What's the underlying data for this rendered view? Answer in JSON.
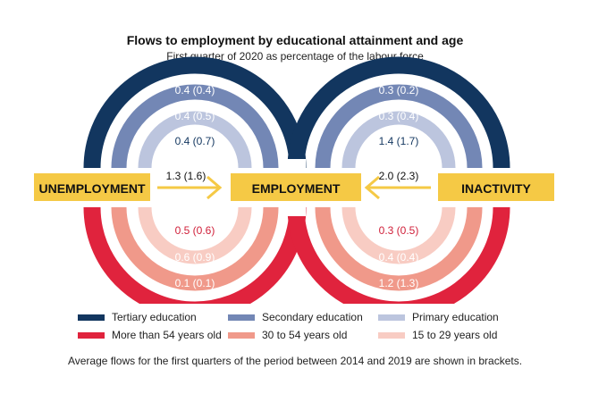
{
  "title": "Flows to employment by educational attainment and age",
  "subtitle": "First quarter of 2020 as percentage of the labour force",
  "colors": {
    "tertiary": "#12365f",
    "secondary": "#7387b5",
    "primary": "#bcc5de",
    "age_over54": "#e0233d",
    "age_30_54": "#f0998a",
    "age_15_29": "#f8ccc3",
    "box": "#f5c945",
    "arrow": "#f5c945"
  },
  "boxes": {
    "unemployment": "UNEMPLOYMENT",
    "employment": "EMPLOYMENT",
    "inactivity": "INACTIVITY"
  },
  "left": {
    "direct": "1.3 (1.6)",
    "tertiary": "0.4 (0.4)",
    "secondary": "0.4 (0.5)",
    "primary": "0.4 (0.7)",
    "age_15_29": "0.5 (0.6)",
    "age_30_54": "0.6 (0.9)",
    "age_over54": "0.1 (0.1)"
  },
  "right": {
    "direct": "2.0 (2.3)",
    "tertiary": "0.3 (0.2)",
    "secondary": "0.3 (0.4)",
    "primary": "1.4 (1.7)",
    "age_15_29": "0.3 (0.5)",
    "age_30_54": "0.4 (0.4)",
    "age_over54": "1.2 (1.3)"
  },
  "legend": {
    "tertiary": "Tertiary education",
    "secondary": "Secondary education",
    "primary": "Primary education",
    "age_over54": "More than 54 years old",
    "age_30_54": "30 to 54 years old",
    "age_15_29": "15 to 29 years old"
  },
  "footnote": "Average flows for the first quarters of the period between 2014 and 2019 are shown in brackets."
}
